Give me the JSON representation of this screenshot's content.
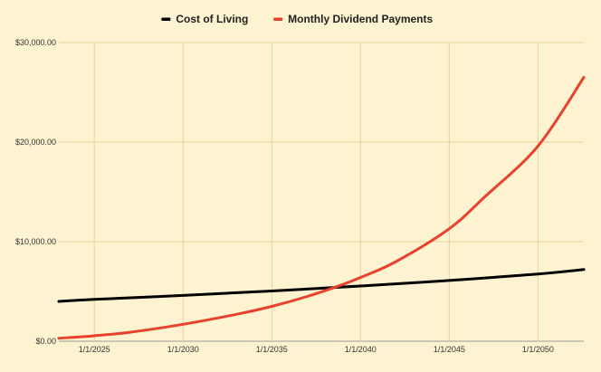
{
  "chart_data": {
    "type": "line",
    "title": "",
    "xlabel": "",
    "ylabel": "",
    "x_ticks": [
      "1/1/2025",
      "1/1/2030",
      "1/1/2035",
      "1/1/2040",
      "1/1/2045",
      "1/1/2050"
    ],
    "y_ticks": [
      "$0.00",
      "$10,000.00",
      "$20,000.00",
      "$30,000.00"
    ],
    "xlim": [
      "2023-01-01",
      "2052-08-01"
    ],
    "ylim": [
      0,
      30000
    ],
    "grid": true,
    "legend_position": "top",
    "series": [
      {
        "name": "Cost of Living",
        "color": "#000000",
        "x": [
          "2023-01-01",
          "2025-01-01",
          "2030-01-01",
          "2035-01-01",
          "2040-01-01",
          "2045-01-01",
          "2050-01-01",
          "2052-08-01"
        ],
        "y": [
          4000,
          4200,
          4600,
          5050,
          5550,
          6100,
          6750,
          7200
        ]
      },
      {
        "name": "Monthly Dividend Payments",
        "color": "#e8412e",
        "x": [
          "2023-01-01",
          "2025-01-01",
          "2027-01-01",
          "2030-01-01",
          "2033-01-01",
          "2035-01-01",
          "2037-01-01",
          "2039-01-01",
          "2040-01-01",
          "2042-01-01",
          "2045-01-01",
          "2047-01-01",
          "2050-01-01",
          "2052-08-01"
        ],
        "y": [
          300,
          550,
          900,
          1700,
          2700,
          3500,
          4500,
          5700,
          6400,
          8000,
          11300,
          14500,
          19600,
          26500
        ]
      }
    ]
  }
}
